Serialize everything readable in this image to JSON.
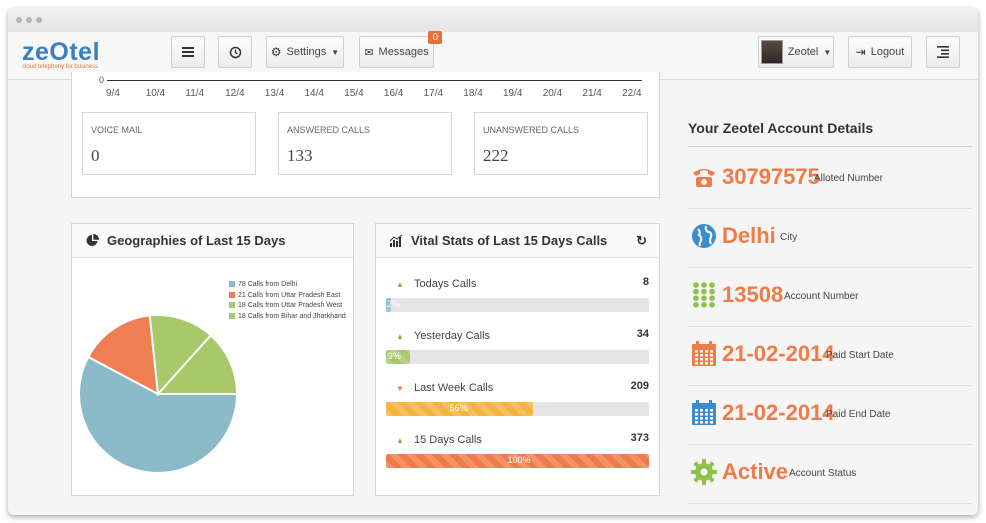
{
  "brand": {
    "logo_text": "zeOtel",
    "tagline": "cloud telephony for business"
  },
  "navbar": {
    "settings_label": "Settings",
    "messages_label": "Messages",
    "messages_badge": "0",
    "user_label": "Zeotel",
    "logout_label": "Logout"
  },
  "timeline": {
    "y_zero": "0",
    "x_ticks": [
      "9/4",
      "10/4",
      "11/4",
      "12/4",
      "13/4",
      "14/4",
      "15/4",
      "16/4",
      "17/4",
      "18/4",
      "19/4",
      "20/4",
      "21/4",
      "22/4"
    ]
  },
  "stats": [
    {
      "label": "VOICE MAIL",
      "value": "0"
    },
    {
      "label": "ANSWERED CALLS",
      "value": "133"
    },
    {
      "label": "UNANSWERED CALLS",
      "value": "222"
    }
  ],
  "geo": {
    "title": "Geographies of Last 15 Days"
  },
  "chart_data": {
    "type": "pie",
    "slices": [
      {
        "label": "78 Calls from Delhi",
        "value": 78,
        "color": "#8bbbc8"
      },
      {
        "label": "21 Calls from Uttar Pradesh East",
        "value": 21,
        "color": "#ef7f52"
      },
      {
        "label": "18 Calls from Uttar Pradesh West",
        "value": 18,
        "color": "#a8c86a"
      },
      {
        "label": "18 Calls from Bihar and Jharkhand",
        "value": 18,
        "color": "#a8c86a"
      }
    ],
    "legend": [
      "78 Calls from Delhi",
      "21 Calls from Uttar Pradesh East",
      "18 Calls from Uttar Pradesh West",
      "18 Calls from Bihar and Jharkhand"
    ]
  },
  "vital": {
    "title": "Vital Stats of Last 15 Days Calls",
    "rows": [
      {
        "name": "Todays Calls",
        "count": "8",
        "percent": 2,
        "pct_label": "2%",
        "trend": "up",
        "color": "#8bbbc8"
      },
      {
        "name": "Yesterday Calls",
        "count": "34",
        "percent": 9,
        "pct_label": "9%",
        "trend": "up",
        "color": "#a8c86a"
      },
      {
        "name": "Last Week Calls",
        "count": "209",
        "percent": 56,
        "pct_label": "56%",
        "trend": "down",
        "color": "#f3b33d"
      },
      {
        "name": "15 Days Calls",
        "count": "373",
        "percent": 100,
        "pct_label": "100%",
        "trend": "up",
        "color": "#ef7b48"
      }
    ]
  },
  "account": {
    "title": "Your Zeotel Account Details",
    "rows": [
      {
        "icon": "phone-icon",
        "value": "30797575",
        "label": "Alloted Number",
        "color": "#ef7b48"
      },
      {
        "icon": "globe-icon",
        "value": "Delhi",
        "label": "City",
        "color": "#3a8ccd"
      },
      {
        "icon": "keypad-icon",
        "value": "13508",
        "label": "Account Number",
        "color": "#8bc34a"
      },
      {
        "icon": "calendar-icon",
        "value": "21-02-2014",
        "label": "Paid Start Date",
        "color": "#ef7b48"
      },
      {
        "icon": "calendar-icon",
        "value": "21-02-2014",
        "label": "Paid End Date",
        "color": "#3a8ccd"
      },
      {
        "icon": "gear-icon",
        "value": "Active",
        "label": "Account Status",
        "color": "#8bc34a"
      }
    ]
  }
}
